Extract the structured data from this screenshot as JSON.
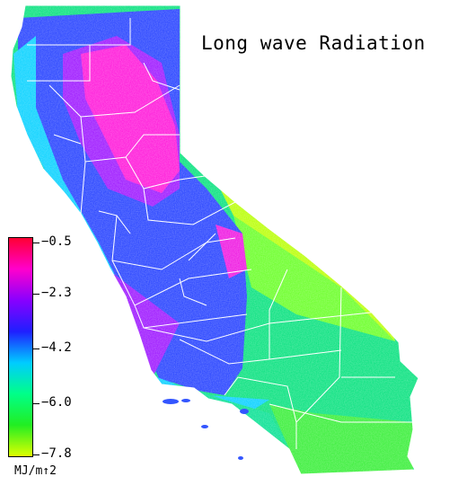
{
  "map": {
    "title": "Long wave Radiation",
    "legend": {
      "ticks": [
        "−0.5",
        "−2.3",
        "−4.2",
        "−6.0",
        "−7.8"
      ],
      "unit": "MJ/m↑2",
      "colors": [
        "#ff0033",
        "#ff00cc",
        "#8800ff",
        "#1f1fff",
        "#00ccff",
        "#00ff88",
        "#22ee22",
        "#ddff00"
      ]
    }
  }
}
